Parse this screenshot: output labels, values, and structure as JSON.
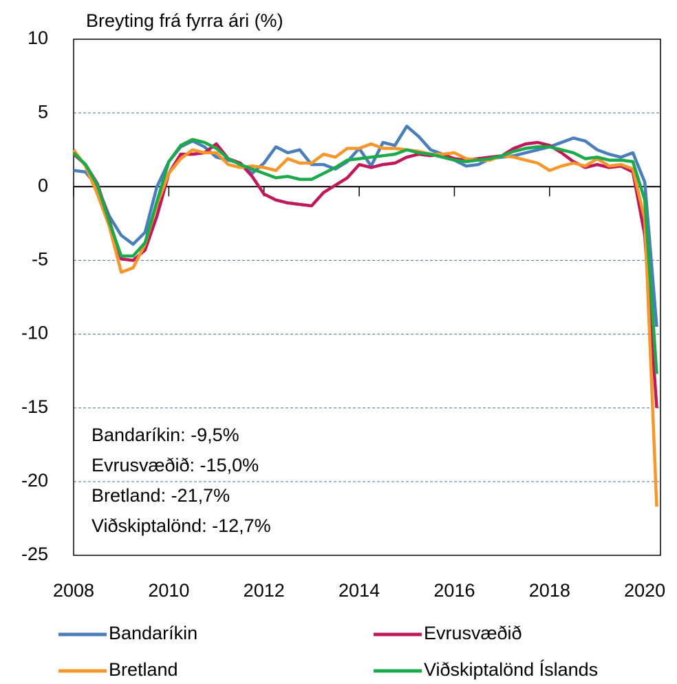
{
  "chart_data": {
    "type": "line",
    "y_axis_label": "Breyting frá fyrra ári (%)",
    "x": [
      2008,
      2008.25,
      2008.5,
      2008.75,
      2009,
      2009.25,
      2009.5,
      2009.75,
      2010,
      2010.25,
      2010.5,
      2010.75,
      2011,
      2011.25,
      2011.5,
      2011.75,
      2012,
      2012.25,
      2012.5,
      2012.75,
      2013,
      2013.25,
      2013.5,
      2013.75,
      2014,
      2014.25,
      2014.5,
      2014.75,
      2015,
      2015.25,
      2015.5,
      2015.75,
      2016,
      2016.25,
      2016.5,
      2016.75,
      2017,
      2017.25,
      2017.5,
      2017.75,
      2018,
      2018.25,
      2018.5,
      2018.75,
      2019,
      2019.25,
      2019.5,
      2019.75,
      2020,
      2020.25
    ],
    "series": [
      {
        "name": "Bandaríkin",
        "color": "#4a7ebb",
        "values": [
          1.1,
          1.0,
          0.0,
          -2.0,
          -3.3,
          -3.9,
          -3.1,
          0.0,
          1.7,
          2.7,
          3.1,
          2.7,
          2.0,
          1.8,
          1.6,
          0.9,
          1.6,
          2.7,
          2.3,
          2.5,
          1.5,
          1.5,
          1.2,
          1.7,
          2.6,
          1.4,
          3.0,
          2.8,
          4.1,
          3.4,
          2.5,
          2.2,
          1.8,
          1.4,
          1.5,
          1.9,
          2.0,
          2.1,
          2.3,
          2.5,
          2.7,
          3.0,
          3.3,
          3.1,
          2.5,
          2.2,
          2.0,
          2.3,
          0.3,
          -9.5
        ]
      },
      {
        "name": "Evrusvæðið",
        "color": "#c0185a",
        "values": [
          2.2,
          1.5,
          0.2,
          -2.3,
          -4.9,
          -5.0,
          -4.3,
          -2.0,
          0.9,
          2.2,
          2.2,
          2.3,
          2.9,
          1.9,
          1.6,
          0.7,
          -0.5,
          -0.9,
          -1.1,
          -1.2,
          -1.3,
          -0.4,
          0.1,
          0.6,
          1.5,
          1.3,
          1.5,
          1.6,
          2.0,
          2.2,
          2.1,
          2.2,
          1.9,
          1.8,
          1.9,
          2.0,
          2.1,
          2.6,
          2.9,
          3.0,
          2.8,
          2.3,
          1.7,
          1.3,
          1.5,
          1.3,
          1.4,
          1.0,
          -3.3,
          -15.0
        ]
      },
      {
        "name": "Bretland",
        "color": "#f7962a",
        "values": [
          2.5,
          1.4,
          -0.5,
          -2.7,
          -5.8,
          -5.5,
          -3.9,
          -1.2,
          0.9,
          1.9,
          2.5,
          2.3,
          2.3,
          1.5,
          1.3,
          1.4,
          1.3,
          1.1,
          1.9,
          1.6,
          1.6,
          2.2,
          2.0,
          2.6,
          2.6,
          2.9,
          2.6,
          2.6,
          2.5,
          2.4,
          2.2,
          2.2,
          2.3,
          1.9,
          1.8,
          1.8,
          2.1,
          2.0,
          1.8,
          1.6,
          1.1,
          1.4,
          1.6,
          1.4,
          1.9,
          1.4,
          1.5,
          1.2,
          -2.2,
          -21.7
        ]
      },
      {
        "name": "Viðskiptalönd Íslands",
        "color": "#1aa94b",
        "values": [
          2.3,
          1.5,
          0.1,
          -2.4,
          -4.7,
          -4.7,
          -3.8,
          -1.0,
          1.7,
          2.8,
          3.2,
          3.0,
          2.6,
          1.9,
          1.5,
          1.2,
          0.9,
          0.6,
          0.7,
          0.5,
          0.5,
          0.9,
          1.3,
          1.8,
          1.9,
          2.0,
          2.1,
          2.2,
          2.5,
          2.3,
          2.2,
          2.0,
          1.8,
          1.7,
          1.8,
          1.9,
          2.1,
          2.4,
          2.6,
          2.7,
          2.7,
          2.5,
          2.3,
          1.9,
          2.0,
          1.8,
          1.8,
          1.7,
          -0.9,
          -12.7
        ]
      }
    ],
    "annotations": [
      {
        "text": "Bandaríkin: -9,5%",
        "color": "#4a7ebb"
      },
      {
        "text": "Evrusvæðið: -15,0%",
        "color": "#c0185a"
      },
      {
        "text": "Bretland: -21,7%",
        "color": "#f7962a"
      },
      {
        "text": "Viðskiptalönd: -12,7%",
        "color": "#1aa94b"
      }
    ],
    "xlim": [
      2008,
      2020.33
    ],
    "xticks": [
      2008,
      2010,
      2012,
      2014,
      2016,
      2018,
      2020
    ],
    "ylim": [
      -25,
      10
    ],
    "yticks": [
      -25,
      -20,
      -15,
      -10,
      -5,
      0,
      5,
      10
    ],
    "grid": true,
    "legend": "bottom"
  }
}
